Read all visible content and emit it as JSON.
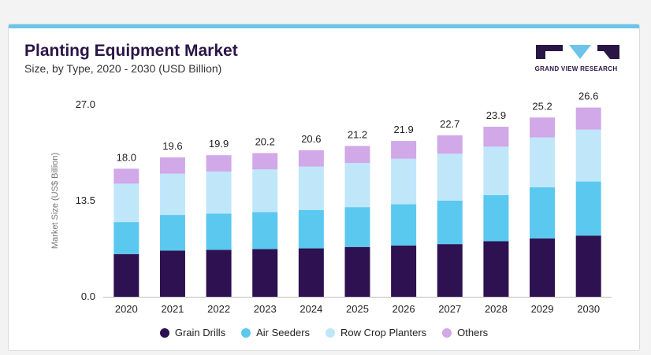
{
  "header": {
    "title": "Planting Equipment Market",
    "subtitle": "Size, by Type, 2020 - 2030 (USD Billion)"
  },
  "logo": {
    "text": "GRAND VIEW RESEARCH"
  },
  "colors": {
    "grain_drills": "#2d1150",
    "air_seeders": "#5bc8f0",
    "row_crop_planters": "#bfe7f9",
    "others": "#d1a8e8",
    "title": "#2a1547",
    "accent_bar": "#6cc4e8"
  },
  "chart_data": {
    "type": "bar",
    "stacked": true,
    "title": "Planting Equipment Market",
    "subtitle": "Size, by Type, 2020 - 2030 (USD Billion)",
    "xlabel": "",
    "ylabel": "Market Size (US$ Billion)",
    "ylim": [
      0,
      27.0
    ],
    "yticks": [
      "0.0",
      "13.5",
      "27.0"
    ],
    "categories": [
      "2020",
      "2021",
      "2022",
      "2023",
      "2024",
      "2025",
      "2026",
      "2027",
      "2028",
      "2029",
      "2030"
    ],
    "totals": [
      "18.0",
      "19.6",
      "19.9",
      "20.2",
      "20.6",
      "21.2",
      "21.9",
      "22.7",
      "23.9",
      "25.2",
      "26.6"
    ],
    "series": [
      {
        "name": "Grain Drills",
        "values": [
          6.0,
          6.5,
          6.6,
          6.7,
          6.8,
          7.0,
          7.2,
          7.4,
          7.8,
          8.2,
          8.6
        ]
      },
      {
        "name": "Air Seeders",
        "values": [
          4.5,
          5.0,
          5.1,
          5.2,
          5.4,
          5.6,
          5.8,
          6.1,
          6.5,
          7.2,
          7.6
        ]
      },
      {
        "name": "Row Crop Planters",
        "values": [
          5.4,
          5.8,
          5.9,
          6.0,
          6.1,
          6.2,
          6.4,
          6.6,
          6.8,
          7.0,
          7.3
        ]
      },
      {
        "name": "Others",
        "values": [
          2.1,
          2.3,
          2.3,
          2.3,
          2.3,
          2.4,
          2.5,
          2.6,
          2.8,
          2.8,
          3.1
        ]
      }
    ],
    "grid": false,
    "legend_position": "bottom"
  }
}
